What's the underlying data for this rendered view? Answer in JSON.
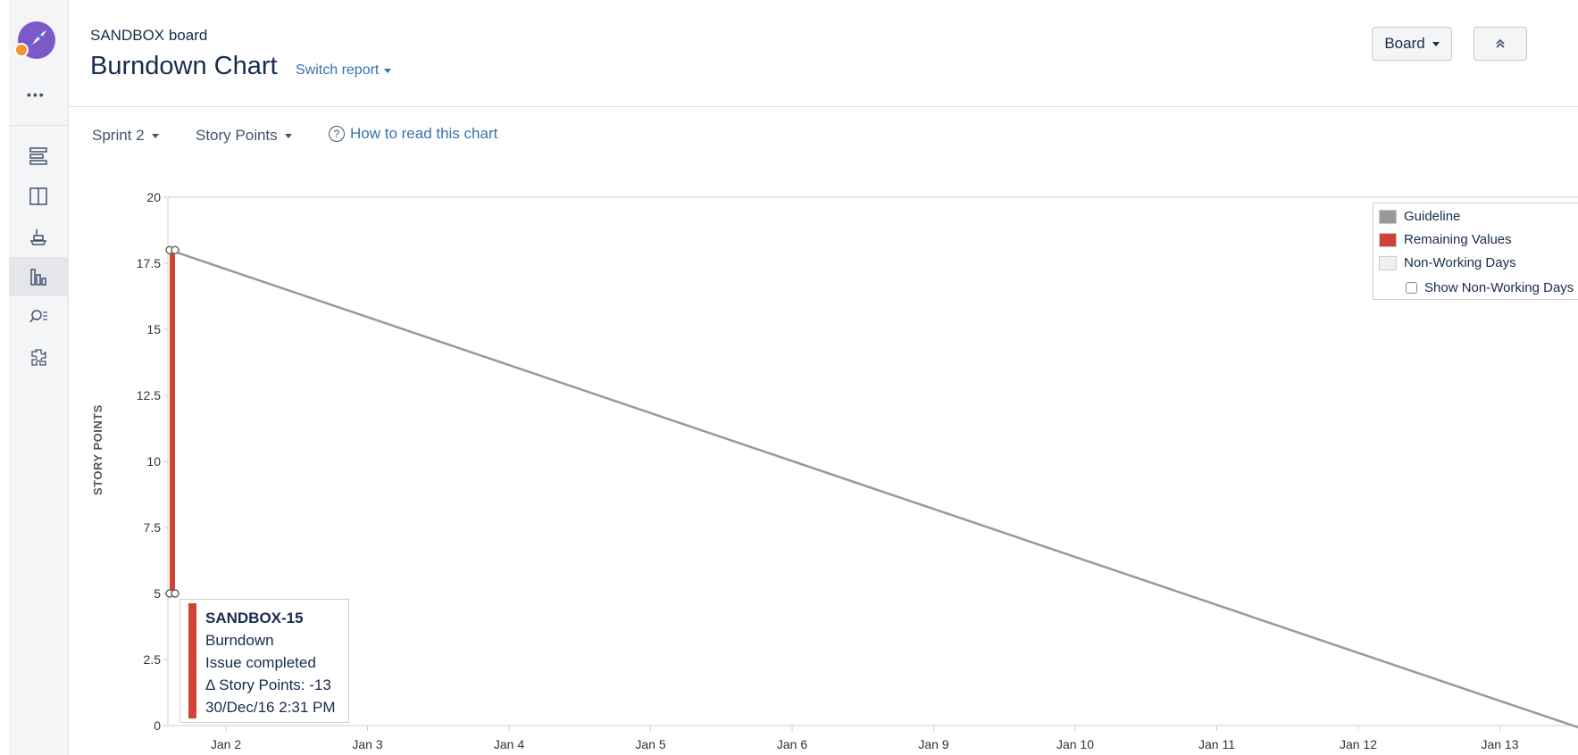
{
  "header": {
    "board_name": "SANDBOX board",
    "title": "Burndown Chart",
    "switch_report": "Switch report",
    "board_button": "Board"
  },
  "nav": {
    "more": "•••",
    "items": [
      "backlog-icon",
      "board-icon",
      "releases-icon",
      "reports-icon",
      "issues-icon",
      "add-ons-icon"
    ],
    "active": "reports-icon"
  },
  "filters": {
    "sprint": "Sprint 2",
    "estimate": "Story Points",
    "help": "How to read this chart"
  },
  "chart_data": {
    "type": "line",
    "ylabel": "STORY POINTS",
    "ylim": [
      0,
      20
    ],
    "yticks": [
      "20",
      "17.5",
      "15",
      "12.5",
      "10",
      "7.5",
      "5",
      "2.5",
      "0"
    ],
    "xticks": [
      "Jan 2",
      "Jan 3",
      "Jan 4",
      "Jan 5",
      "Jan 6",
      "Jan 9",
      "Jan 10",
      "Jan 11",
      "Jan 12",
      "Jan 13"
    ],
    "series": [
      {
        "name": "Guideline",
        "color": "#999999",
        "from_value": 18,
        "to_value": 0
      },
      {
        "name": "Remaining Values",
        "color": "#d04437",
        "from_value": 18,
        "to_value": 5
      }
    ],
    "legend": {
      "items": [
        {
          "label": "Guideline",
          "color": "#999999"
        },
        {
          "label": "Remaining Values",
          "color": "#d04437"
        },
        {
          "label": "Non-Working Days",
          "color": "#f0f0f0"
        }
      ],
      "checkbox": "Show Non-Working Days",
      "checked": false,
      "position": "top-right"
    }
  },
  "tooltip": {
    "issue": "SANDBOX-15",
    "type": "Burndown",
    "event": "Issue completed",
    "delta": "Δ Story Points: -13",
    "date": "30/Dec/16 2:31 PM"
  }
}
